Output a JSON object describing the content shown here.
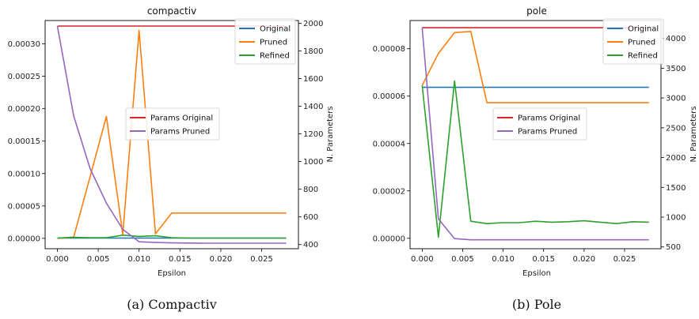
{
  "colors": {
    "Original": "#1f77b4",
    "Pruned": "#ff7f0e",
    "Refined": "#2ca02c",
    "Params Original": "#d62728",
    "Params Pruned": "#9467bd"
  },
  "chart_data": [
    {
      "type": "line",
      "title": "compactiv",
      "caption": "(a) Compactiv",
      "xlabel": "Epsilon",
      "ylabel": "",
      "y2label": "N. Parameters",
      "xlim": [
        -0.0015,
        0.0295
      ],
      "ylim": [
        -1.6e-05,
        0.000336
      ],
      "y2lim": [
        370,
        2020
      ],
      "x_ticks": [
        0.0,
        0.005,
        0.01,
        0.015,
        0.02,
        0.025
      ],
      "x_tick_labels": [
        "0.000",
        "0.005",
        "0.010",
        "0.015",
        "0.020",
        "0.025"
      ],
      "y_ticks": [
        0.0,
        5e-05,
        0.0001,
        0.00015,
        0.0002,
        0.00025,
        0.0003
      ],
      "y_tick_labels": [
        "0.00000",
        "0.00005",
        "0.00010",
        "0.00015",
        "0.00020",
        "0.00025",
        "0.00030"
      ],
      "y2_ticks": [
        400,
        600,
        800,
        1000,
        1200,
        1400,
        1600,
        1800,
        2000
      ],
      "y2_tick_labels": [
        "400",
        "600",
        "800",
        "1000",
        "1200",
        "1400",
        "1600",
        "1800",
        "2000"
      ],
      "x": [
        0.0,
        0.002,
        0.004,
        0.006,
        0.008,
        0.01,
        0.012,
        0.014,
        0.016,
        0.018,
        0.02,
        0.022,
        0.024,
        0.026,
        0.028
      ],
      "series": [
        {
          "name": "Original",
          "axis": "left",
          "values": [
            5e-07,
            5e-07,
            5e-07,
            5e-07,
            5e-07,
            5e-07,
            5e-07,
            5e-07,
            5e-07,
            5e-07,
            5e-07,
            5e-07,
            5e-07,
            5e-07,
            5e-07
          ]
        },
        {
          "name": "Pruned",
          "axis": "left",
          "values": [
            0.0,
            2e-06,
            9.5e-05,
            0.000188,
            6e-06,
            0.000321,
            7e-06,
            3.9e-05,
            3.9e-05,
            3.9e-05,
            3.9e-05,
            3.9e-05,
            3.9e-05,
            3.9e-05,
            3.9e-05
          ]
        },
        {
          "name": "Refined",
          "axis": "left",
          "values": [
            5e-07,
            1.5e-06,
            1e-06,
            1e-06,
            5e-06,
            3e-06,
            4e-06,
            1e-06,
            5e-07,
            5e-07,
            5e-07,
            5e-07,
            5e-07,
            5e-07,
            5e-07
          ]
        },
        {
          "name": "Params Original",
          "axis": "right",
          "values": [
            1980,
            1980,
            1980,
            1980,
            1980,
            1980,
            1980,
            1980,
            1980,
            1980,
            1980,
            1980,
            1980,
            1980,
            1980
          ]
        },
        {
          "name": "Params Pruned",
          "axis": "right",
          "values": [
            1980,
            1330,
            950,
            700,
            510,
            420,
            415,
            412,
            411,
            410,
            410,
            410,
            410,
            410,
            410
          ]
        }
      ],
      "legends": [
        {
          "position": "top-right",
          "entries": [
            "Original",
            "Pruned",
            "Refined"
          ]
        },
        {
          "position": "center",
          "entries": [
            "Params Original",
            "Params Pruned"
          ]
        }
      ]
    },
    {
      "type": "line",
      "title": "pole",
      "caption": "(b) Pole",
      "xlabel": "Epsilon",
      "ylabel": "",
      "y2label": "N. Parameters",
      "xlim": [
        -0.0015,
        0.0295
      ],
      "ylim": [
        -4.4e-06,
        9.19e-05
      ],
      "y2lim": [
        470,
        4300
      ],
      "x_ticks": [
        0.0,
        0.005,
        0.01,
        0.015,
        0.02,
        0.025
      ],
      "x_tick_labels": [
        "0.000",
        "0.005",
        "0.010",
        "0.015",
        "0.020",
        "0.025"
      ],
      "y_ticks": [
        0.0,
        2e-05,
        4e-05,
        6e-05,
        8e-05
      ],
      "y_tick_labels": [
        "0.00000",
        "0.00002",
        "0.00004",
        "0.00006",
        "0.00008"
      ],
      "y2_ticks": [
        500,
        1000,
        1500,
        2000,
        2500,
        3000,
        3500,
        4000
      ],
      "y2_tick_labels": [
        "500",
        "1000",
        "1500",
        "2000",
        "2500",
        "3000",
        "3500",
        "4000"
      ],
      "x": [
        0.0,
        0.002,
        0.004,
        0.006,
        0.008,
        0.01,
        0.012,
        0.014,
        0.016,
        0.018,
        0.02,
        0.022,
        0.024,
        0.026,
        0.028
      ],
      "series": [
        {
          "name": "Original",
          "axis": "left",
          "values": [
            6.37e-05,
            6.37e-05,
            6.37e-05,
            6.37e-05,
            6.37e-05,
            6.37e-05,
            6.37e-05,
            6.37e-05,
            6.37e-05,
            6.37e-05,
            6.37e-05,
            6.37e-05,
            6.37e-05,
            6.37e-05,
            6.37e-05
          ]
        },
        {
          "name": "Pruned",
          "axis": "left",
          "values": [
            6.45e-05,
            7.8e-05,
            8.68e-05,
            8.73e-05,
            5.72e-05,
            5.72e-05,
            5.72e-05,
            5.72e-05,
            5.72e-05,
            5.72e-05,
            5.72e-05,
            5.72e-05,
            5.72e-05,
            5.72e-05,
            5.72e-05
          ]
        },
        {
          "name": "Refined",
          "axis": "left",
          "values": [
            6.45e-05,
            5e-07,
            6.64e-05,
            7.2e-06,
            6.2e-06,
            6.6e-06,
            6.6e-06,
            7.2e-06,
            6.8e-06,
            7e-06,
            7.4e-06,
            6.8e-06,
            6.2e-06,
            7e-06,
            6.8e-06
          ]
        },
        {
          "name": "Params Original",
          "axis": "right",
          "values": [
            4180,
            4180,
            4180,
            4180,
            4180,
            4180,
            4180,
            4180,
            4180,
            4180,
            4180,
            4180,
            4180,
            4180,
            4180
          ]
        },
        {
          "name": "Params Pruned",
          "axis": "right",
          "values": [
            4180,
            970,
            640,
            620,
            620,
            620,
            620,
            620,
            620,
            620,
            620,
            620,
            620,
            620,
            620
          ]
        }
      ],
      "legends": [
        {
          "position": "top-right",
          "entries": [
            "Original",
            "Pruned",
            "Refined"
          ]
        },
        {
          "position": "center",
          "entries": [
            "Params Original",
            "Params Pruned"
          ]
        }
      ]
    }
  ]
}
